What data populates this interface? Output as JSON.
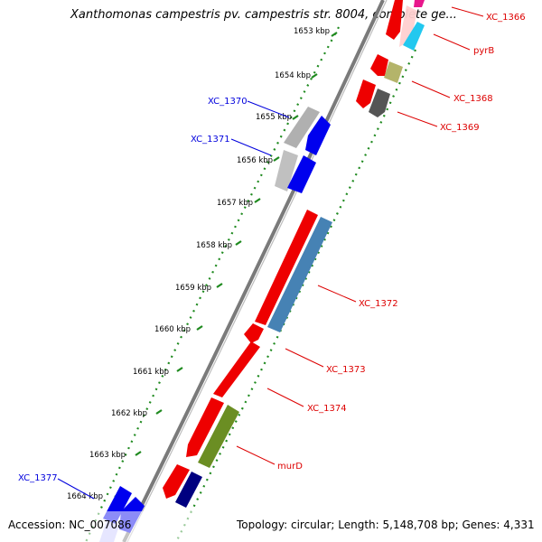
{
  "title": "Xanthomonas campestris pv. campestris str. 8004, complete ge...",
  "footer": {
    "accession": "Accession: NC_007086",
    "topology": "Topology: circular; Length: 5,148,708 bp; Genes: 4,331"
  },
  "colors": {
    "backbone": "#808080",
    "tick_strand": "#1f8a1f",
    "label_forward": "#0000dd",
    "label_reverse": "#dd0000"
  },
  "ticks": [
    {
      "label": "1653 kbp"
    },
    {
      "label": "1654 kbp"
    },
    {
      "label": "1655 kbp"
    },
    {
      "label": "1656 kbp"
    },
    {
      "label": "1657 kbp"
    },
    {
      "label": "1658 kbp"
    },
    {
      "label": "1659 kbp"
    },
    {
      "label": "1660 kbp"
    },
    {
      "label": "1661 kbp"
    },
    {
      "label": "1662 kbp"
    },
    {
      "label": "1663 kbp"
    },
    {
      "label": "1664 kbp"
    }
  ],
  "gene_labels": [
    {
      "text": "XC_1366",
      "strand": "reverse"
    },
    {
      "text": "pyrB",
      "strand": "reverse"
    },
    {
      "text": "XC_1368",
      "strand": "reverse"
    },
    {
      "text": "XC_1369",
      "strand": "reverse"
    },
    {
      "text": "XC_1370",
      "strand": "forward"
    },
    {
      "text": "XC_1371",
      "strand": "forward"
    },
    {
      "text": "XC_1372",
      "strand": "reverse"
    },
    {
      "text": "XC_1373",
      "strand": "reverse"
    },
    {
      "text": "XC_1374",
      "strand": "reverse"
    },
    {
      "text": "murD",
      "strand": "reverse"
    },
    {
      "text": "XC_1377",
      "strand": "forward"
    }
  ]
}
